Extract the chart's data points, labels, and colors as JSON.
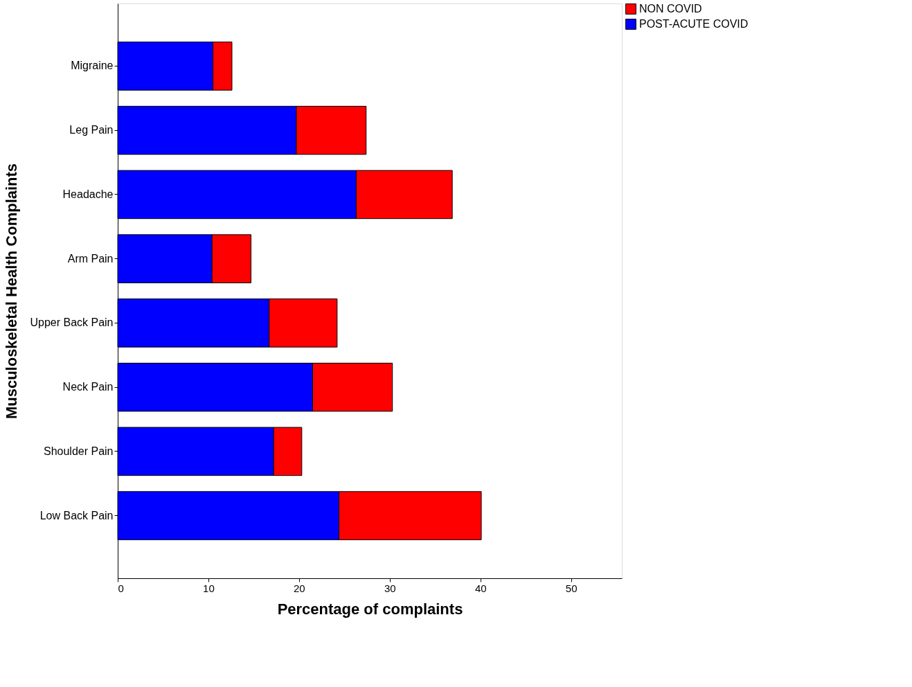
{
  "chart_data": {
    "type": "bar",
    "orientation": "horizontal",
    "stacked": true,
    "xlabel": "Percentage of complaints",
    "ylabel": "Musculoskeletal Health Complaints",
    "categories": [
      "Migraine",
      "Leg Pain",
      "Headache",
      "Arm Pain",
      "Upper Back Pain",
      "Neck Pain",
      "Shoulder Pain",
      "Low Back Pain"
    ],
    "series": [
      {
        "name": "POST-ACUTE COVID",
        "color": "#0000ff",
        "values": [
          10.5,
          19.7,
          26.3,
          10.4,
          16.7,
          21.5,
          17.2,
          24.4
        ]
      },
      {
        "name": "NON COVID",
        "color": "#ff0000",
        "values": [
          2.1,
          7.7,
          10.6,
          4.3,
          7.5,
          8.8,
          3.1,
          15.7
        ]
      }
    ],
    "xlim": [
      0,
      55.6
    ],
    "xticks": [
      0,
      10,
      20,
      30,
      40,
      50
    ],
    "grid": false,
    "legend": "top right"
  }
}
